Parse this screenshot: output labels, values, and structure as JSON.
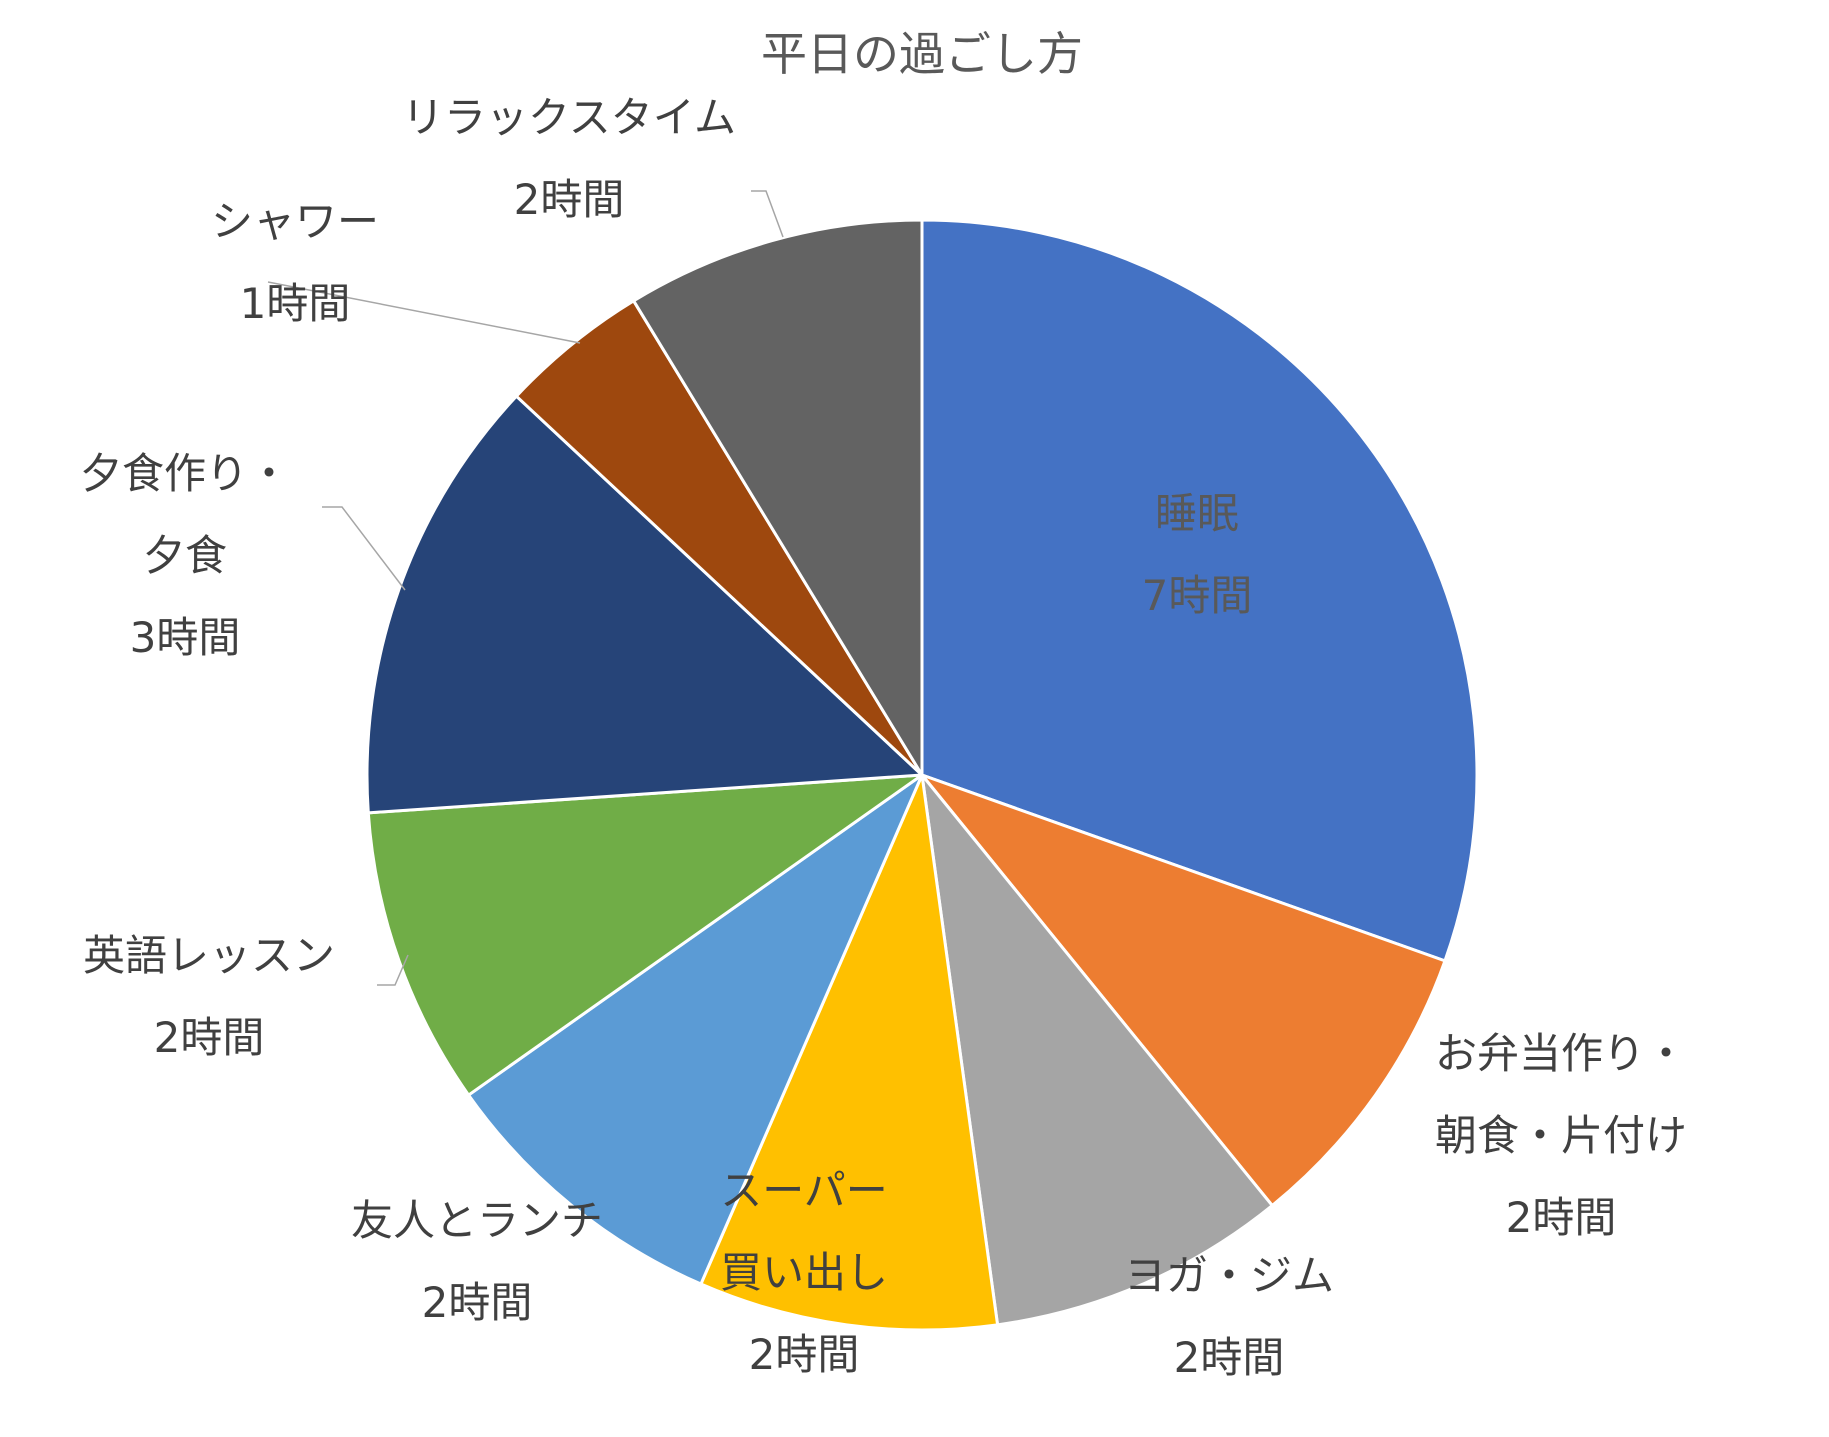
{
  "chart_data": {
    "type": "pie",
    "title": "平日の過ごし方",
    "unit": "時間",
    "start_angle_deg": 0,
    "direction": "clockwise",
    "grid": false,
    "legend": "none",
    "slices": [
      {
        "label_lines": [
          "睡眠"
        ],
        "value": 7,
        "value_label": "7時間",
        "color": "#4472C4",
        "label_color": "#595959"
      },
      {
        "label_lines": [
          "お弁当作り・",
          "朝食・片付け"
        ],
        "value": 2,
        "value_label": "2時間",
        "color": "#ED7D31",
        "label_color": "#404040"
      },
      {
        "label_lines": [
          "ヨガ・ジム"
        ],
        "value": 2,
        "value_label": "2時間",
        "color": "#A5A5A5",
        "label_color": "#404040"
      },
      {
        "label_lines": [
          "スーパー",
          "買い出し"
        ],
        "value": 2,
        "value_label": "2時間",
        "color": "#FFC000",
        "label_color": "#404040"
      },
      {
        "label_lines": [
          "友人とランチ"
        ],
        "value": 2,
        "value_label": "2時間",
        "color": "#5B9BD5",
        "label_color": "#404040"
      },
      {
        "label_lines": [
          "英語レッスン"
        ],
        "value": 2,
        "value_label": "2時間",
        "color": "#70AD47",
        "label_color": "#404040"
      },
      {
        "label_lines": [
          "夕食作り・",
          "夕食"
        ],
        "value": 3,
        "value_label": "3時間",
        "color": "#264478",
        "label_color": "#404040"
      },
      {
        "label_lines": [
          "シャワー"
        ],
        "value": 1,
        "value_label": "1時間",
        "color": "#9E480E",
        "label_color": "#404040"
      },
      {
        "label_lines": [
          "リラックスタイム"
        ],
        "value": 2,
        "value_label": "2時間",
        "color": "#636363",
        "label_color": "#404040"
      }
    ]
  }
}
